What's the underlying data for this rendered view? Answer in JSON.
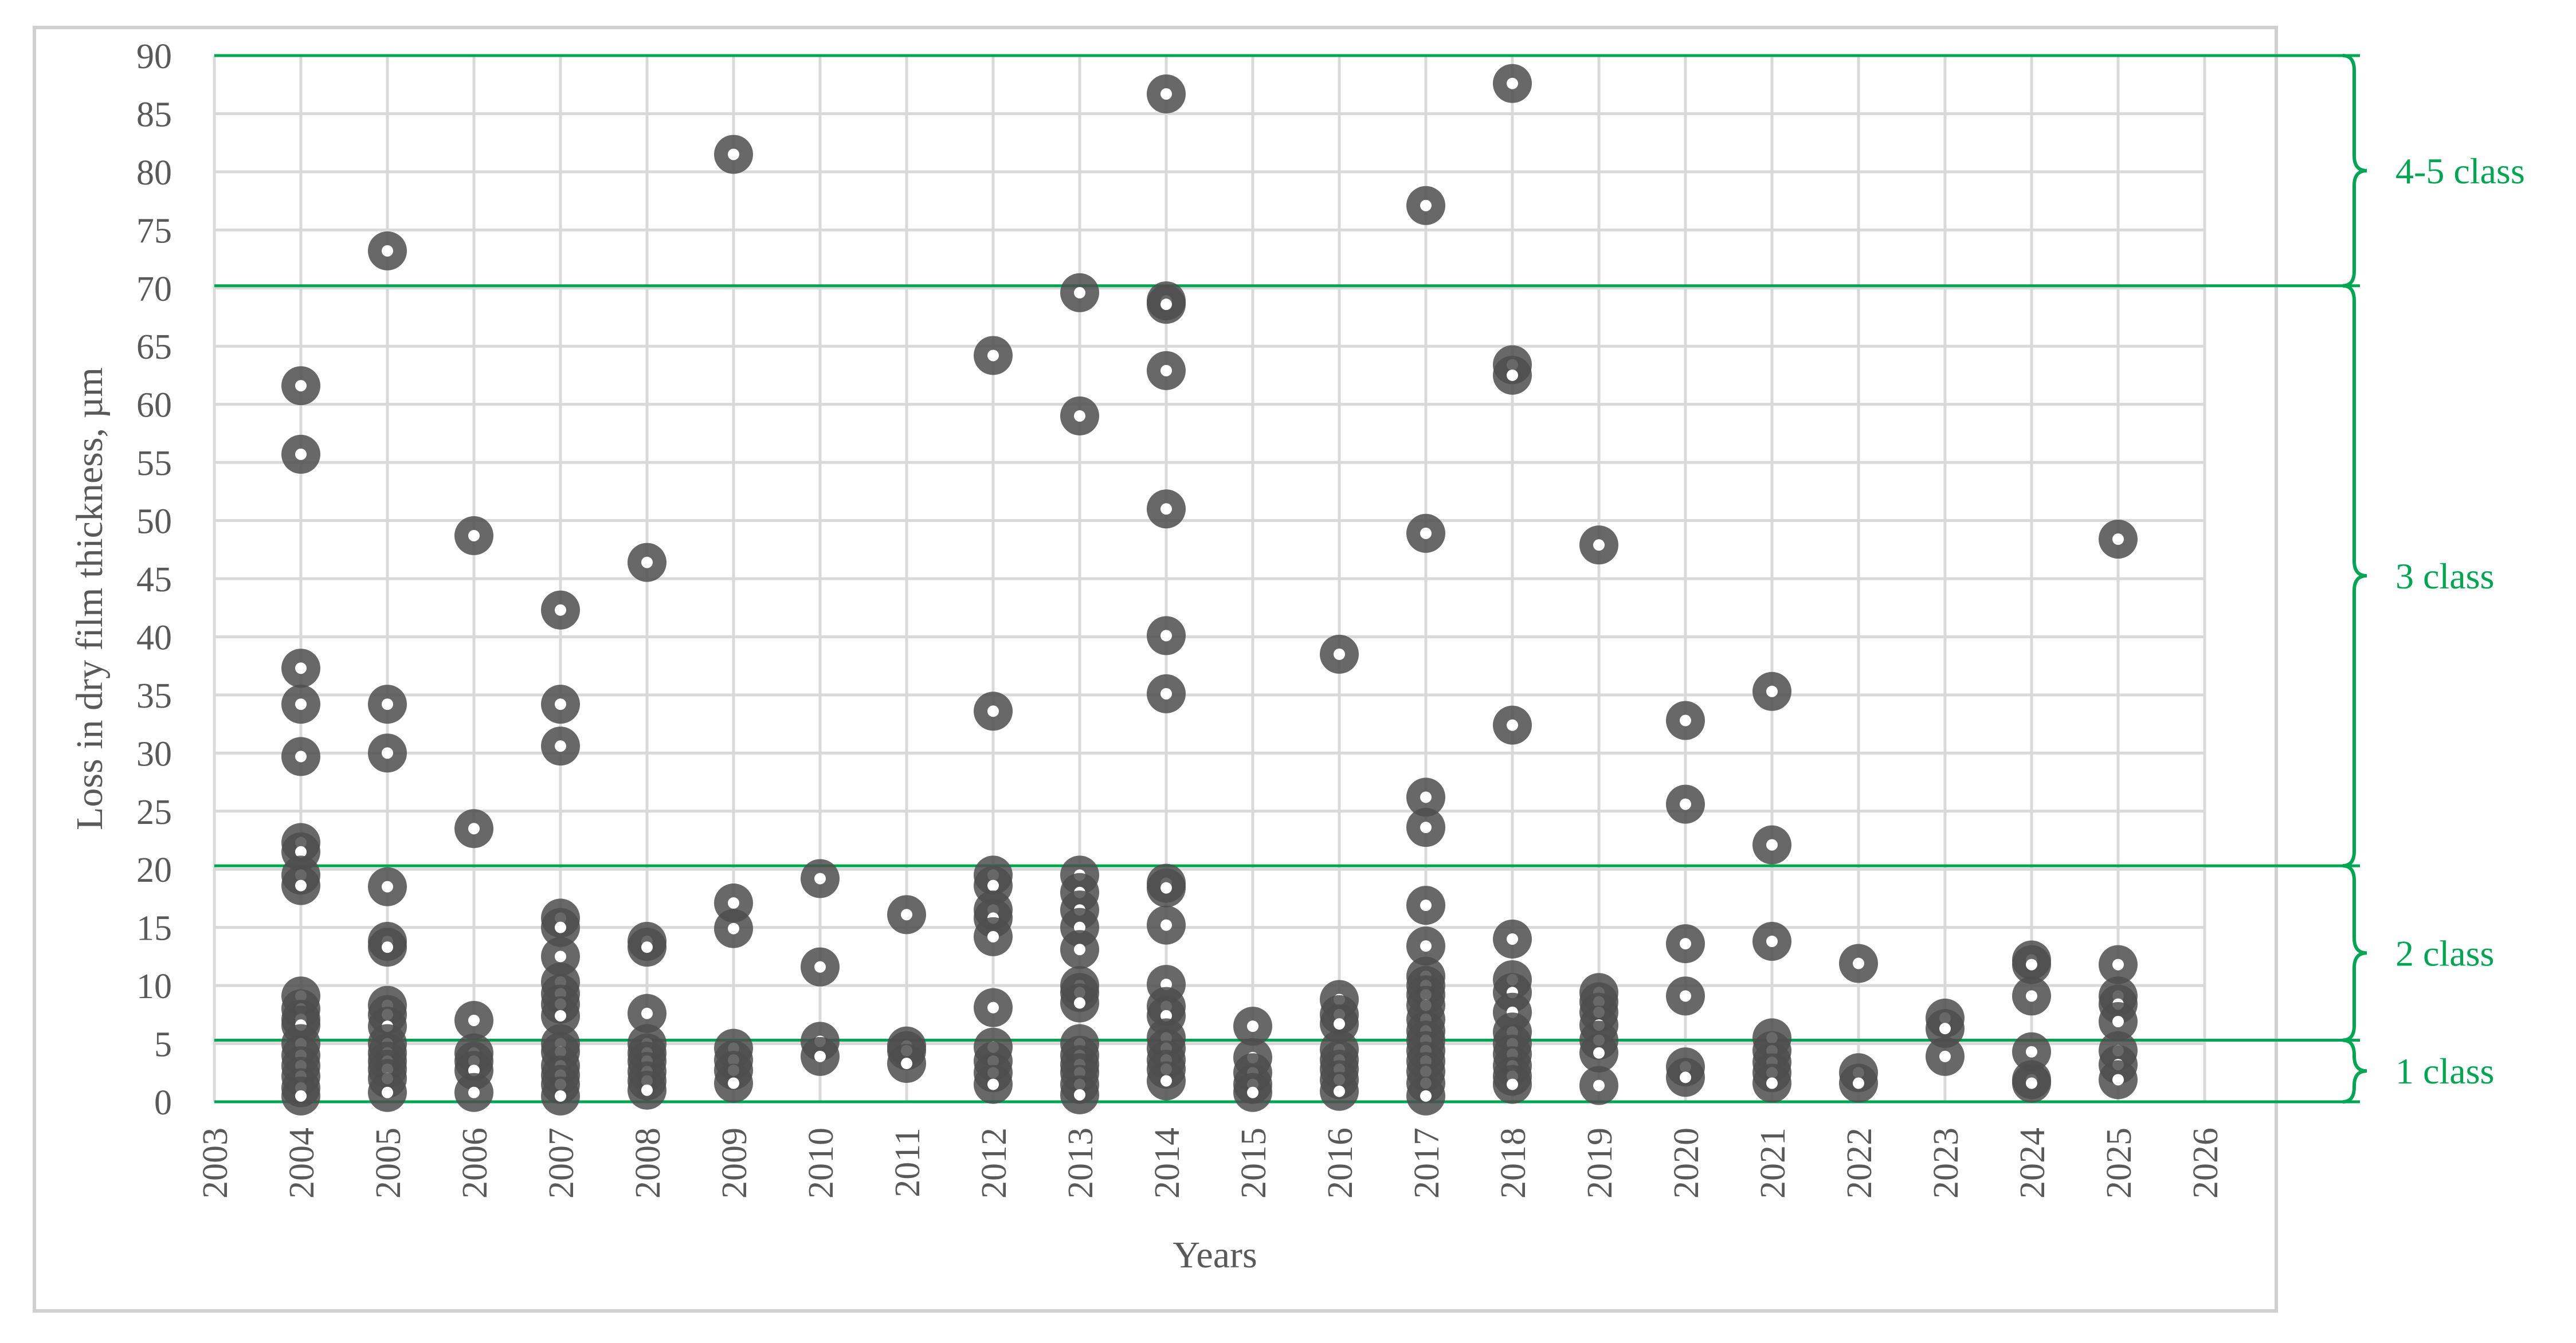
{
  "chart_data": {
    "type": "scatter",
    "title": "",
    "xlabel": "Years",
    "ylabel": "Loss in dry film thickness, µm",
    "xlim": [
      2003,
      2026
    ],
    "ylim": [
      0,
      90
    ],
    "x_ticks": [
      "2003",
      "2004",
      "2005",
      "2006",
      "2007",
      "2008",
      "2009",
      "2010",
      "2011",
      "2012",
      "2013",
      "2014",
      "2015",
      "2016",
      "2017",
      "2018",
      "2019",
      "2020",
      "2021",
      "2022",
      "2023",
      "2024",
      "2025",
      "2026"
    ],
    "y_ticks": [
      "0",
      "5",
      "10",
      "15",
      "20",
      "25",
      "30",
      "35",
      "40",
      "45",
      "50",
      "55",
      "60",
      "65",
      "70",
      "75",
      "80",
      "85",
      "90"
    ],
    "grid": true,
    "legend": "none",
    "colors": {
      "marker": "#4d4d4d",
      "marker_center": "#ffffff",
      "class_lines": "#00a651",
      "grid": "#d9d9d9",
      "frame": "#d0d0d0",
      "text": "#595959"
    },
    "class_thresholds": [
      {
        "label": "1 class",
        "from": 0,
        "to": 5.3
      },
      {
        "label": "2 class",
        "from": 5.3,
        "to": 20.3
      },
      {
        "label": "3 class",
        "from": 20.3,
        "to": 70.2
      },
      {
        "label": "4-5 class",
        "from": 70.2,
        "to": 90
      }
    ],
    "points": [
      {
        "x": 2004,
        "y": 61.6
      },
      {
        "x": 2004,
        "y": 55.7
      },
      {
        "x": 2004,
        "y": 37.3
      },
      {
        "x": 2004,
        "y": 34.2
      },
      {
        "x": 2004,
        "y": 29.7
      },
      {
        "x": 2004,
        "y": 22.3
      },
      {
        "x": 2004,
        "y": 21.5
      },
      {
        "x": 2004,
        "y": 19.5
      },
      {
        "x": 2004,
        "y": 18.6
      },
      {
        "x": 2004,
        "y": 9.1
      },
      {
        "x": 2004,
        "y": 8.0
      },
      {
        "x": 2004,
        "y": 7.1
      },
      {
        "x": 2004,
        "y": 6.6
      },
      {
        "x": 2004,
        "y": 5.0
      },
      {
        "x": 2004,
        "y": 4.0
      },
      {
        "x": 2004,
        "y": 3.1
      },
      {
        "x": 2004,
        "y": 2.2
      },
      {
        "x": 2004,
        "y": 1.2
      },
      {
        "x": 2004,
        "y": 0.5
      },
      {
        "x": 2005,
        "y": 73.2
      },
      {
        "x": 2005,
        "y": 34.2
      },
      {
        "x": 2005,
        "y": 30.0
      },
      {
        "x": 2005,
        "y": 18.5
      },
      {
        "x": 2005,
        "y": 13.8
      },
      {
        "x": 2005,
        "y": 13.3
      },
      {
        "x": 2005,
        "y": 8.3
      },
      {
        "x": 2005,
        "y": 7.5
      },
      {
        "x": 2005,
        "y": 6.5
      },
      {
        "x": 2005,
        "y": 5.0
      },
      {
        "x": 2005,
        "y": 4.2
      },
      {
        "x": 2005,
        "y": 3.5
      },
      {
        "x": 2005,
        "y": 2.8
      },
      {
        "x": 2005,
        "y": 2.0
      },
      {
        "x": 2005,
        "y": 0.8
      },
      {
        "x": 2006,
        "y": 48.7
      },
      {
        "x": 2006,
        "y": 23.5
      },
      {
        "x": 2006,
        "y": 7.0
      },
      {
        "x": 2006,
        "y": 4.2
      },
      {
        "x": 2006,
        "y": 3.5
      },
      {
        "x": 2006,
        "y": 2.7
      },
      {
        "x": 2006,
        "y": 0.8
      },
      {
        "x": 2007,
        "y": 42.3
      },
      {
        "x": 2007,
        "y": 34.2
      },
      {
        "x": 2007,
        "y": 30.6
      },
      {
        "x": 2007,
        "y": 15.8
      },
      {
        "x": 2007,
        "y": 15.0
      },
      {
        "x": 2007,
        "y": 12.5
      },
      {
        "x": 2007,
        "y": 10.3
      },
      {
        "x": 2007,
        "y": 9.3
      },
      {
        "x": 2007,
        "y": 8.4
      },
      {
        "x": 2007,
        "y": 7.4
      },
      {
        "x": 2007,
        "y": 5.0
      },
      {
        "x": 2007,
        "y": 4.3
      },
      {
        "x": 2007,
        "y": 3.1
      },
      {
        "x": 2007,
        "y": 2.3
      },
      {
        "x": 2007,
        "y": 1.5
      },
      {
        "x": 2007,
        "y": 0.5
      },
      {
        "x": 2008,
        "y": 46.4
      },
      {
        "x": 2008,
        "y": 13.8
      },
      {
        "x": 2008,
        "y": 13.3
      },
      {
        "x": 2008,
        "y": 7.6
      },
      {
        "x": 2008,
        "y": 5.0
      },
      {
        "x": 2008,
        "y": 4.2
      },
      {
        "x": 2008,
        "y": 3.5
      },
      {
        "x": 2008,
        "y": 2.6
      },
      {
        "x": 2008,
        "y": 1.8
      },
      {
        "x": 2008,
        "y": 1.0
      },
      {
        "x": 2009,
        "y": 81.5
      },
      {
        "x": 2009,
        "y": 17.1
      },
      {
        "x": 2009,
        "y": 14.9
      },
      {
        "x": 2009,
        "y": 4.6
      },
      {
        "x": 2009,
        "y": 3.6
      },
      {
        "x": 2009,
        "y": 2.7
      },
      {
        "x": 2009,
        "y": 1.6
      },
      {
        "x": 2010,
        "y": 19.2
      },
      {
        "x": 2010,
        "y": 11.6
      },
      {
        "x": 2010,
        "y": 5.2
      },
      {
        "x": 2010,
        "y": 3.9
      },
      {
        "x": 2011,
        "y": 16.1
      },
      {
        "x": 2011,
        "y": 4.8
      },
      {
        "x": 2011,
        "y": 4.4
      },
      {
        "x": 2011,
        "y": 3.3
      },
      {
        "x": 2012,
        "y": 64.2
      },
      {
        "x": 2012,
        "y": 33.6
      },
      {
        "x": 2012,
        "y": 19.5
      },
      {
        "x": 2012,
        "y": 18.6
      },
      {
        "x": 2012,
        "y": 16.5
      },
      {
        "x": 2012,
        "y": 15.8
      },
      {
        "x": 2012,
        "y": 14.2
      },
      {
        "x": 2012,
        "y": 8.1
      },
      {
        "x": 2012,
        "y": 4.7
      },
      {
        "x": 2012,
        "y": 3.5
      },
      {
        "x": 2012,
        "y": 2.5
      },
      {
        "x": 2012,
        "y": 1.5
      },
      {
        "x": 2013,
        "y": 69.6
      },
      {
        "x": 2013,
        "y": 59.0
      },
      {
        "x": 2013,
        "y": 19.5
      },
      {
        "x": 2013,
        "y": 18.0
      },
      {
        "x": 2013,
        "y": 16.5
      },
      {
        "x": 2013,
        "y": 15.0
      },
      {
        "x": 2013,
        "y": 13.1
      },
      {
        "x": 2013,
        "y": 10.0
      },
      {
        "x": 2013,
        "y": 9.4
      },
      {
        "x": 2013,
        "y": 8.5
      },
      {
        "x": 2013,
        "y": 5.0
      },
      {
        "x": 2013,
        "y": 4.0
      },
      {
        "x": 2013,
        "y": 3.2
      },
      {
        "x": 2013,
        "y": 2.5
      },
      {
        "x": 2013,
        "y": 1.5
      },
      {
        "x": 2013,
        "y": 0.6
      },
      {
        "x": 2014,
        "y": 86.7
      },
      {
        "x": 2014,
        "y": 68.9
      },
      {
        "x": 2014,
        "y": 68.6
      },
      {
        "x": 2014,
        "y": 62.9
      },
      {
        "x": 2014,
        "y": 51.0
      },
      {
        "x": 2014,
        "y": 40.1
      },
      {
        "x": 2014,
        "y": 35.1
      },
      {
        "x": 2014,
        "y": 18.8
      },
      {
        "x": 2014,
        "y": 18.4
      },
      {
        "x": 2014,
        "y": 15.2
      },
      {
        "x": 2014,
        "y": 10.1
      },
      {
        "x": 2014,
        "y": 8.2
      },
      {
        "x": 2014,
        "y": 7.4
      },
      {
        "x": 2014,
        "y": 5.5
      },
      {
        "x": 2014,
        "y": 4.6
      },
      {
        "x": 2014,
        "y": 3.6
      },
      {
        "x": 2014,
        "y": 2.8
      },
      {
        "x": 2014,
        "y": 1.8
      },
      {
        "x": 2015,
        "y": 6.5
      },
      {
        "x": 2015,
        "y": 3.8
      },
      {
        "x": 2015,
        "y": 2.5
      },
      {
        "x": 2015,
        "y": 1.5
      },
      {
        "x": 2015,
        "y": 0.8
      },
      {
        "x": 2016,
        "y": 38.5
      },
      {
        "x": 2016,
        "y": 8.8
      },
      {
        "x": 2016,
        "y": 7.5
      },
      {
        "x": 2016,
        "y": 6.7
      },
      {
        "x": 2016,
        "y": 4.5
      },
      {
        "x": 2016,
        "y": 3.6
      },
      {
        "x": 2016,
        "y": 2.8
      },
      {
        "x": 2016,
        "y": 1.9
      },
      {
        "x": 2016,
        "y": 0.9
      },
      {
        "x": 2017,
        "y": 77.1
      },
      {
        "x": 2017,
        "y": 48.9
      },
      {
        "x": 2017,
        "y": 26.2
      },
      {
        "x": 2017,
        "y": 23.6
      },
      {
        "x": 2017,
        "y": 16.9
      },
      {
        "x": 2017,
        "y": 13.4
      },
      {
        "x": 2017,
        "y": 10.8
      },
      {
        "x": 2017,
        "y": 10.0
      },
      {
        "x": 2017,
        "y": 9.2
      },
      {
        "x": 2017,
        "y": 8.3
      },
      {
        "x": 2017,
        "y": 7.1
      },
      {
        "x": 2017,
        "y": 6.1
      },
      {
        "x": 2017,
        "y": 5.3
      },
      {
        "x": 2017,
        "y": 4.4
      },
      {
        "x": 2017,
        "y": 3.5
      },
      {
        "x": 2017,
        "y": 2.6
      },
      {
        "x": 2017,
        "y": 1.6
      },
      {
        "x": 2017,
        "y": 0.5
      },
      {
        "x": 2018,
        "y": 87.6
      },
      {
        "x": 2018,
        "y": 63.4
      },
      {
        "x": 2018,
        "y": 62.5
      },
      {
        "x": 2018,
        "y": 32.4
      },
      {
        "x": 2018,
        "y": 14.0
      },
      {
        "x": 2018,
        "y": 10.5
      },
      {
        "x": 2018,
        "y": 9.4
      },
      {
        "x": 2018,
        "y": 7.7
      },
      {
        "x": 2018,
        "y": 6.0
      },
      {
        "x": 2018,
        "y": 5.0
      },
      {
        "x": 2018,
        "y": 4.1
      },
      {
        "x": 2018,
        "y": 3.1
      },
      {
        "x": 2018,
        "y": 2.2
      },
      {
        "x": 2018,
        "y": 1.5
      },
      {
        "x": 2019,
        "y": 47.9
      },
      {
        "x": 2019,
        "y": 9.4
      },
      {
        "x": 2019,
        "y": 8.6
      },
      {
        "x": 2019,
        "y": 7.7
      },
      {
        "x": 2019,
        "y": 6.6
      },
      {
        "x": 2019,
        "y": 5.3
      },
      {
        "x": 2019,
        "y": 4.2
      },
      {
        "x": 2019,
        "y": 1.4
      },
      {
        "x": 2020,
        "y": 32.8
      },
      {
        "x": 2020,
        "y": 25.6
      },
      {
        "x": 2020,
        "y": 13.6
      },
      {
        "x": 2020,
        "y": 9.1
      },
      {
        "x": 2020,
        "y": 3.0
      },
      {
        "x": 2020,
        "y": 2.1
      },
      {
        "x": 2021,
        "y": 35.3
      },
      {
        "x": 2021,
        "y": 22.1
      },
      {
        "x": 2021,
        "y": 13.8
      },
      {
        "x": 2021,
        "y": 5.5
      },
      {
        "x": 2021,
        "y": 4.4
      },
      {
        "x": 2021,
        "y": 3.4
      },
      {
        "x": 2021,
        "y": 2.5
      },
      {
        "x": 2021,
        "y": 1.6
      },
      {
        "x": 2022,
        "y": 11.9
      },
      {
        "x": 2022,
        "y": 2.5
      },
      {
        "x": 2022,
        "y": 1.6
      },
      {
        "x": 2023,
        "y": 7.2
      },
      {
        "x": 2023,
        "y": 6.3
      },
      {
        "x": 2023,
        "y": 3.9
      },
      {
        "x": 2024,
        "y": 12.2
      },
      {
        "x": 2024,
        "y": 11.8
      },
      {
        "x": 2024,
        "y": 9.1
      },
      {
        "x": 2024,
        "y": 4.3
      },
      {
        "x": 2024,
        "y": 1.9
      },
      {
        "x": 2024,
        "y": 1.6
      },
      {
        "x": 2025,
        "y": 48.4
      },
      {
        "x": 2025,
        "y": 11.8
      },
      {
        "x": 2025,
        "y": 9.1
      },
      {
        "x": 2025,
        "y": 8.4
      },
      {
        "x": 2025,
        "y": 6.9
      },
      {
        "x": 2025,
        "y": 4.4
      },
      {
        "x": 2025,
        "y": 3.2
      },
      {
        "x": 2025,
        "y": 1.9
      }
    ]
  }
}
